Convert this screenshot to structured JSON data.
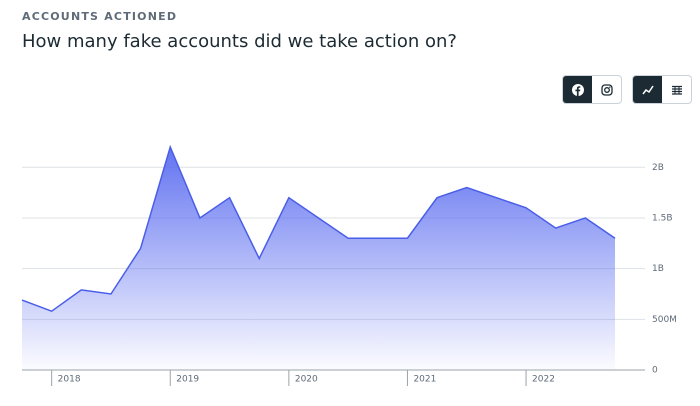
{
  "header": {
    "eyebrow": "ACCOUNTS ACTIONED",
    "title": "How many fake accounts did we take action on?"
  },
  "chart_data": {
    "type": "area",
    "categories": [
      null,
      "2018",
      null,
      null,
      null,
      "2019",
      null,
      null,
      null,
      "2020",
      null,
      null,
      null,
      "2021",
      null,
      null,
      null,
      "2022",
      null,
      null,
      null
    ],
    "series": [
      {
        "name": null,
        "color": "#4a5ee8",
        "values": [
          690000000,
          580000000,
          790000000,
          750000000,
          1200000000,
          2200000000,
          1500000000,
          1700000000,
          1100000000,
          1700000000,
          1500000000,
          1300000000,
          1300000000,
          1300000000,
          1700000000,
          1800000000,
          1700000000,
          1600000000,
          1400000000,
          1500000000,
          1300000000
        ]
      }
    ],
    "ylim": [
      0,
      2200000000
    ],
    "yticks": [
      0,
      {
        "value": 500000000,
        "label": "500M"
      },
      {
        "value": 1000000000,
        "label": "1B"
      },
      {
        "value": 1500000000,
        "label": "1.5B"
      },
      {
        "value": 2000000000,
        "label": "2B"
      }
    ],
    "grid": true
  }
}
